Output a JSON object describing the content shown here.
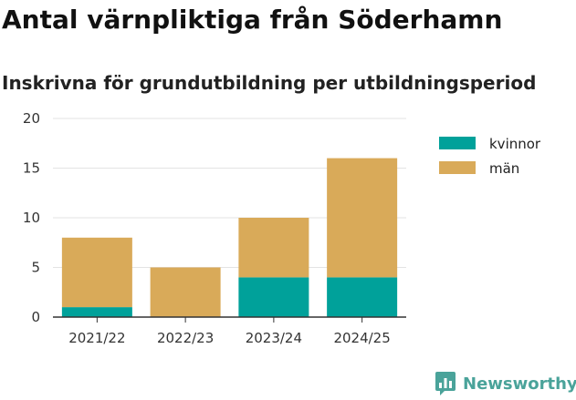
{
  "header": {
    "title": "Antal värnpliktiga från Söderhamn",
    "subtitle": "Inskrivna för grundutbildning per utbildningsperiod"
  },
  "brand": {
    "name": "Newsworthy",
    "icon": "bar-chart-logo-icon",
    "color": "#4aa39a"
  },
  "chart_data": {
    "type": "bar",
    "stacked": true,
    "categories": [
      "2021/22",
      "2022/23",
      "2023/24",
      "2024/25"
    ],
    "series": [
      {
        "name": "kvinnor",
        "color": "#00a19a",
        "values": [
          1,
          0,
          4,
          4
        ]
      },
      {
        "name": "män",
        "color": "#d9aa59",
        "values": [
          7,
          5,
          6,
          12
        ]
      }
    ],
    "ylim": [
      0,
      20
    ],
    "yticks": [
      "0",
      "5",
      "10",
      "15",
      "20"
    ],
    "xlabel": "",
    "ylabel": "",
    "grid": true,
    "legend_position": "top-right"
  }
}
